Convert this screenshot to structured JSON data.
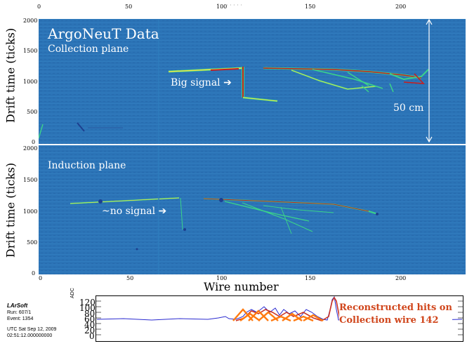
{
  "top_axis_ticks": [
    "0",
    "50",
    "100",
    "150",
    "200"
  ],
  "top_axis_extra": "· · · · ·",
  "collection": {
    "title": "ArgoNeuT Data",
    "subtitle": "Collection plane",
    "annotation": "Big signal",
    "scale_label": "50 cm",
    "ylabel": "Drift time (ticks)",
    "yticks": [
      "2000",
      "1500",
      "1000",
      "500",
      "0"
    ]
  },
  "induction": {
    "subtitle": "Induction plane",
    "annotation": "~no signal",
    "ylabel": "Drift time (ticks)",
    "yticks": [
      "2000",
      "1500",
      "1000",
      "500",
      "0"
    ]
  },
  "bottom_axis_ticks": [
    "0",
    "50",
    "100",
    "150",
    "200"
  ],
  "xlabel": "Wire number",
  "larsoft": {
    "title": "LArSoft",
    "run": "Run:   607/1",
    "event": "Event: 1354",
    "date": "UTC Sat Sep 12, 2009",
    "time": "02:51:12.000000000"
  },
  "waveform": {
    "ylabel": "ADC",
    "yticks": [
      "120",
      "100",
      "80",
      "60",
      "40",
      "20",
      "0"
    ],
    "legend_line1": "Reconstructed hits on",
    "legend_line2": "Collection wire 142",
    "colors": {
      "signal": "#2a2ad0",
      "fit": "#cc3322",
      "hits": "#ff7a10",
      "legend": "#d0451b"
    }
  },
  "colors": {
    "panel_bg": "#2b73b6",
    "track_core": "#c81e1e",
    "track_halo": "#f2e64a",
    "track_edge": "#3bd38a"
  }
}
